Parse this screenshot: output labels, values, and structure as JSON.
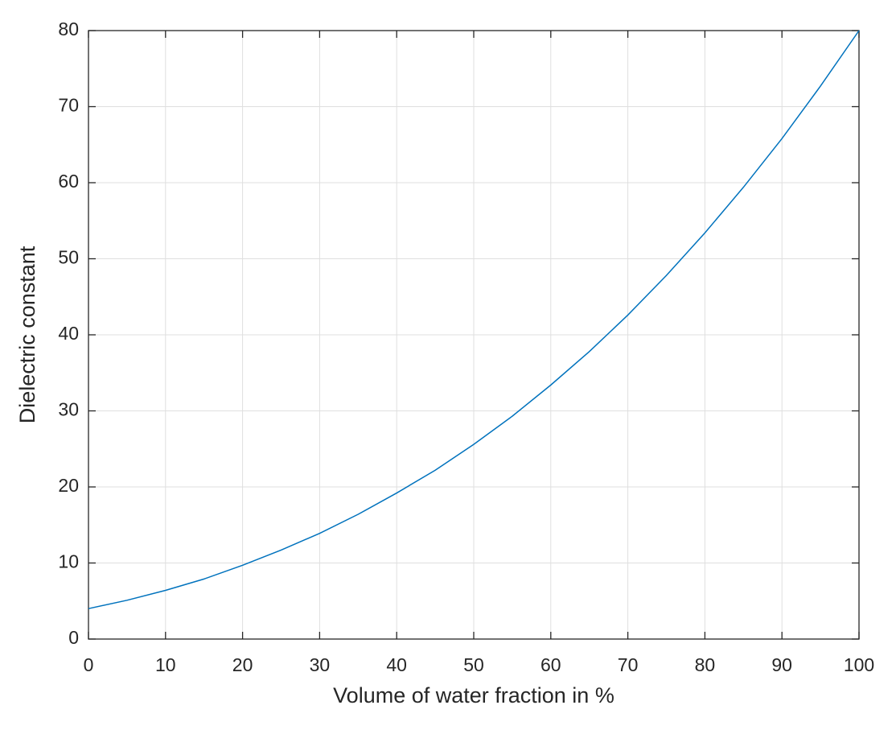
{
  "chart_data": {
    "type": "line",
    "xlabel": "Volume of water fraction in %",
    "ylabel": "Dielectric constant",
    "x": [
      0,
      5,
      10,
      15,
      20,
      25,
      30,
      35,
      40,
      45,
      50,
      55,
      60,
      65,
      70,
      75,
      80,
      85,
      90,
      95,
      100
    ],
    "values": [
      4,
      5.1,
      6.4,
      7.9,
      9.7,
      11.7,
      13.9,
      16.4,
      19.2,
      22.2,
      25.6,
      29.3,
      33.4,
      37.8,
      42.6,
      47.8,
      53.4,
      59.4,
      65.8,
      72.7,
      80
    ],
    "color": "#0072bd",
    "xlim": [
      0,
      100
    ],
    "xticks": [
      0,
      10,
      20,
      30,
      40,
      50,
      60,
      70,
      80,
      90,
      100
    ],
    "ylim": [
      0,
      80
    ],
    "yticks": [
      0,
      10,
      20,
      30,
      40,
      50,
      60,
      70,
      80
    ],
    "grid": true
  }
}
